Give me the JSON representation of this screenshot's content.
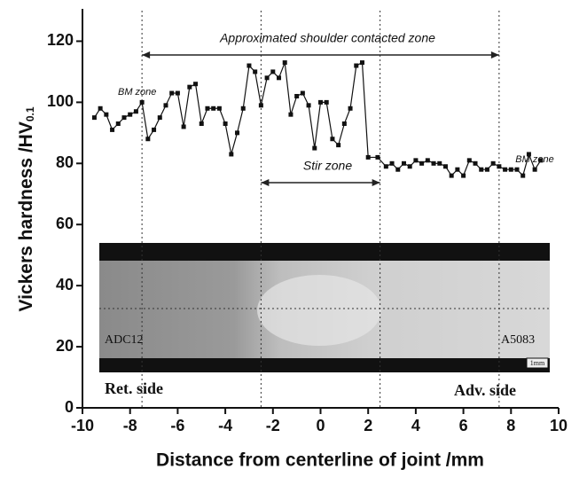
{
  "chart_data": {
    "type": "line",
    "xlabel": "Distance from centerline of joint /mm",
    "ylabel": "Vickers hardness /HV",
    "ylabel_sub": "0.1",
    "xlim": [
      -10,
      10
    ],
    "xticks": [
      -10,
      -8,
      -6,
      -4,
      -2,
      0,
      2,
      4,
      6,
      8,
      10
    ],
    "ylim": [
      0,
      130
    ],
    "yticks": [
      0,
      20,
      40,
      60,
      80,
      100,
      120
    ],
    "x": [
      -9.5,
      -9.25,
      -9.0,
      -8.75,
      -8.5,
      -8.25,
      -8.0,
      -7.75,
      -7.5,
      -7.25,
      -7.0,
      -6.75,
      -6.5,
      -6.25,
      -6.0,
      -5.75,
      -5.5,
      -5.25,
      -5.0,
      -4.75,
      -4.5,
      -4.25,
      -4.0,
      -3.75,
      -3.5,
      -3.25,
      -3.0,
      -2.75,
      -2.5,
      -2.25,
      -2.0,
      -1.75,
      -1.5,
      -1.25,
      -1.0,
      -0.75,
      -0.5,
      -0.25,
      0.0,
      0.25,
      0.5,
      0.75,
      1.0,
      1.25,
      1.5,
      1.75,
      2.0,
      2.4,
      2.75,
      3.0,
      3.25,
      3.5,
      3.75,
      4.0,
      4.25,
      4.5,
      4.75,
      5.0,
      5.25,
      5.5,
      5.75,
      6.0,
      6.25,
      6.5,
      6.75,
      7.0,
      7.25,
      7.5,
      7.75,
      8.0,
      8.25,
      8.5,
      8.75,
      9.0,
      9.25
    ],
    "series": [
      {
        "color": "#111111",
        "values": [
          95,
          98,
          96,
          91,
          93,
          95,
          96,
          97,
          100,
          88,
          91,
          95,
          99,
          103,
          103,
          92,
          105,
          106,
          93,
          98,
          98,
          98,
          93,
          83,
          90,
          98,
          112,
          110,
          99,
          108,
          110,
          108,
          113,
          96,
          102,
          103,
          99,
          85,
          100,
          100,
          88,
          86,
          93,
          98,
          112,
          113,
          82,
          82,
          79,
          80,
          78,
          80,
          79,
          81,
          80,
          81,
          80,
          80,
          79,
          76,
          78,
          76,
          81,
          80,
          78,
          78,
          80,
          79,
          78,
          78,
          78,
          76,
          83,
          78,
          81
        ]
      }
    ],
    "zone_lines": [
      -7.5,
      -2.5,
      2.5,
      7.5
    ],
    "annotations": [
      {
        "text": "Approximated shoulder contacted zone",
        "x_range": [
          -7.5,
          7.5
        ]
      },
      {
        "text": "Stir zone",
        "x_range": [
          -2.5,
          2.5
        ]
      },
      {
        "text": "BM zone"
      },
      {
        "text": "BM zone"
      }
    ],
    "micrograph": {
      "left_label": "ADC12",
      "right_label": "A5083",
      "scale_label": "1mm",
      "ret_label": "Ret. side",
      "adv_label": "Adv. side"
    }
  }
}
